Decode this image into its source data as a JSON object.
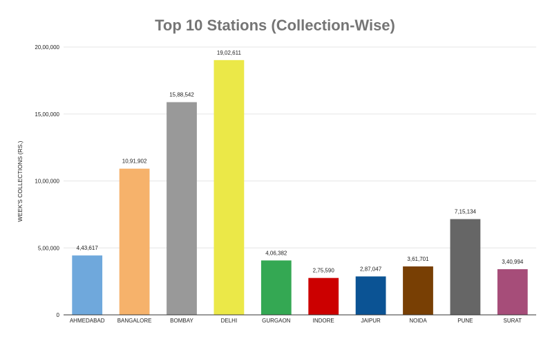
{
  "chart_data": {
    "type": "bar",
    "title": "Top 10 Stations (Collection-Wise)",
    "xlabel": "",
    "ylabel": "WEEK'S COLLECTIONS (RS.)",
    "ylim": [
      0,
      2000000
    ],
    "yticks": [
      {
        "value": 0,
        "label": "0"
      },
      {
        "value": 500000,
        "label": "5,00,000"
      },
      {
        "value": 1000000,
        "label": "10,00,000"
      },
      {
        "value": 1500000,
        "label": "15,00,000"
      },
      {
        "value": 2000000,
        "label": "20,00,000"
      }
    ],
    "grid": true,
    "legend": "none",
    "categories": [
      "AHMEDABAD",
      "BANGALORE",
      "BOMBAY",
      "DELHI",
      "GURGAON",
      "INDORE",
      "JAIPUR",
      "NOIDA",
      "PUNE",
      "SURAT"
    ],
    "values": [
      443617,
      1091902,
      1588542,
      1902611,
      406382,
      275590,
      287047,
      361701,
      715134,
      340994
    ],
    "value_labels": [
      "4,43,617",
      "10,91,902",
      "15,88,542",
      "19,02,611",
      "4,06,382",
      "2,75,590",
      "2,87,047",
      "3,61,701",
      "7,15,134",
      "3,40,994"
    ],
    "colors": [
      "#6fa8dc",
      "#f6b26b",
      "#999999",
      "#ebe848",
      "#34a853",
      "#cc0000",
      "#0b5394",
      "#783f04",
      "#666666",
      "#a64d79"
    ]
  }
}
